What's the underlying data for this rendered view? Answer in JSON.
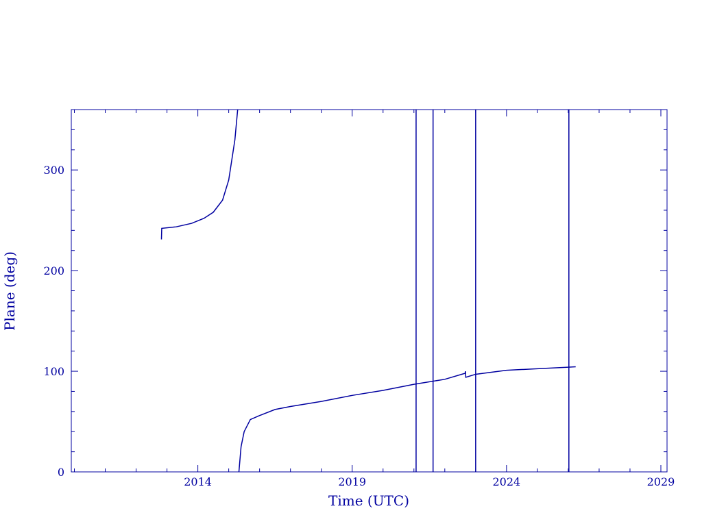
{
  "chart_data": {
    "type": "line",
    "xlabel": "Time (UTC)",
    "ylabel": "Plane (deg)",
    "xlim": [
      2009.9,
      2029.2
    ],
    "ylim": [
      0,
      360
    ],
    "xticks": [
      2014,
      2019,
      2024,
      2029
    ],
    "xminorticks": [
      2010,
      2011,
      2012,
      2013,
      2015,
      2016,
      2017,
      2018,
      2020,
      2021,
      2022,
      2023,
      2025,
      2026,
      2027,
      2028
    ],
    "yticks": [
      0,
      100,
      200,
      300
    ],
    "yminorticks": [
      20,
      40,
      60,
      80,
      120,
      140,
      160,
      180,
      220,
      240,
      260,
      280,
      320,
      340
    ],
    "color": "#0000a0",
    "series": [
      {
        "x": [
          2012.82,
          2012.83,
          2013.3,
          2013.8,
          2014.2,
          2014.5,
          2014.8,
          2015.0,
          2015.1,
          2015.2,
          2015.29
        ],
        "values": [
          231,
          242,
          243.5,
          247,
          252,
          258,
          270,
          290,
          310,
          330,
          360
        ]
      },
      {
        "x": [
          2015.33,
          2015.4,
          2015.5,
          2015.7,
          2016,
          2016.5,
          2017,
          2018,
          2019,
          2020,
          2021,
          2022,
          2022.66,
          2022.67,
          2022.68,
          2023,
          2024,
          2025,
          2026,
          2026.24
        ],
        "values": [
          0,
          25,
          40,
          52,
          56,
          62,
          65,
          70,
          76,
          81,
          87,
          92,
          98,
          100,
          94,
          97,
          101,
          102.5,
          104,
          104.5
        ]
      }
    ],
    "vlines": [
      2021.07,
      2021.62,
      2023.0,
      2026.02
    ]
  }
}
